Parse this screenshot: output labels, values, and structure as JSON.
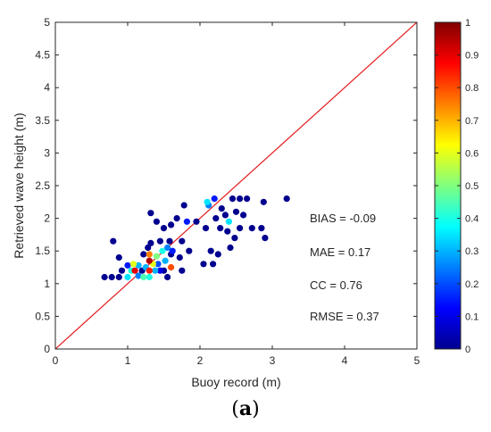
{
  "chart_data": {
    "type": "scatter",
    "xlabel": "Buoy record (m)",
    "ylabel": "Retrieved wave height (m)",
    "xlim": [
      0,
      5
    ],
    "ylim": [
      0,
      5
    ],
    "x_ticks": [
      "0",
      "1",
      "2",
      "3",
      "4",
      "5"
    ],
    "y_ticks": [
      "0",
      "0.5",
      "1",
      "1.5",
      "2",
      "2.5",
      "3",
      "3.5",
      "4",
      "4.5",
      "5"
    ],
    "grid": false,
    "reference_line": {
      "from": [
        0,
        0
      ],
      "to": [
        5,
        5
      ],
      "color": "#e31a1c"
    },
    "stats": [
      "BIAS = -0.09",
      "MAE = 0.17",
      "CC = 0.76",
      "RMSE = 0.37"
    ],
    "colorbar": {
      "range": [
        0,
        1
      ],
      "ticks": [
        "0",
        "0.1",
        "0.2",
        "0.3",
        "0.4",
        "0.5",
        "0.6",
        "0.7",
        "0.8",
        "0.9",
        "1"
      ],
      "colormap": "jet",
      "placement": "right"
    },
    "points": [
      {
        "x": 0.68,
        "y": 1.1,
        "c": 0.0
      },
      {
        "x": 0.78,
        "y": 1.1,
        "c": 0.0
      },
      {
        "x": 0.8,
        "y": 1.65,
        "c": 0.0
      },
      {
        "x": 0.88,
        "y": 1.4,
        "c": 0.0
      },
      {
        "x": 0.88,
        "y": 1.1,
        "c": 0.0
      },
      {
        "x": 0.92,
        "y": 1.2,
        "c": 0.0
      },
      {
        "x": 1.0,
        "y": 1.28,
        "c": 0.15
      },
      {
        "x": 1.0,
        "y": 1.1,
        "c": 0.35
      },
      {
        "x": 1.05,
        "y": 1.2,
        "c": 0.4
      },
      {
        "x": 1.08,
        "y": 1.3,
        "c": 0.6
      },
      {
        "x": 1.1,
        "y": 1.2,
        "c": 0.9
      },
      {
        "x": 1.15,
        "y": 1.28,
        "c": 0.3
      },
      {
        "x": 1.15,
        "y": 1.12,
        "c": 0.25
      },
      {
        "x": 1.2,
        "y": 1.2,
        "c": 0.0
      },
      {
        "x": 1.22,
        "y": 1.45,
        "c": 0.0
      },
      {
        "x": 1.22,
        "y": 1.1,
        "c": 0.45
      },
      {
        "x": 1.25,
        "y": 1.25,
        "c": 0.3
      },
      {
        "x": 1.28,
        "y": 1.55,
        "c": 0.0
      },
      {
        "x": 1.3,
        "y": 1.45,
        "c": 0.75
      },
      {
        "x": 1.3,
        "y": 1.35,
        "c": 0.95
      },
      {
        "x": 1.3,
        "y": 1.2,
        "c": 0.85
      },
      {
        "x": 1.3,
        "y": 1.1,
        "c": 0.4
      },
      {
        "x": 1.32,
        "y": 2.08,
        "c": 0.0
      },
      {
        "x": 1.32,
        "y": 1.62,
        "c": 0.0
      },
      {
        "x": 1.35,
        "y": 1.3,
        "c": 0.6
      },
      {
        "x": 1.38,
        "y": 1.2,
        "c": 0.3
      },
      {
        "x": 1.4,
        "y": 1.95,
        "c": 0.0
      },
      {
        "x": 1.4,
        "y": 1.42,
        "c": 0.5
      },
      {
        "x": 1.42,
        "y": 1.3,
        "c": 0.2
      },
      {
        "x": 1.45,
        "y": 1.2,
        "c": 0.1
      },
      {
        "x": 1.45,
        "y": 1.65,
        "c": 0.0
      },
      {
        "x": 1.48,
        "y": 1.5,
        "c": 0.4
      },
      {
        "x": 1.5,
        "y": 1.85,
        "c": 0.0
      },
      {
        "x": 1.5,
        "y": 1.2,
        "c": 0.0
      },
      {
        "x": 1.52,
        "y": 1.35,
        "c": 0.3
      },
      {
        "x": 1.55,
        "y": 1.55,
        "c": 0.25
      },
      {
        "x": 1.55,
        "y": 1.1,
        "c": 0.0
      },
      {
        "x": 1.58,
        "y": 1.65,
        "c": 0.0
      },
      {
        "x": 1.6,
        "y": 1.45,
        "c": 0.0
      },
      {
        "x": 1.6,
        "y": 1.25,
        "c": 0.8
      },
      {
        "x": 1.6,
        "y": 1.9,
        "c": 0.0
      },
      {
        "x": 1.62,
        "y": 1.5,
        "c": 0.15
      },
      {
        "x": 1.68,
        "y": 2.0,
        "c": 0.0
      },
      {
        "x": 1.72,
        "y": 1.4,
        "c": 0.0
      },
      {
        "x": 1.75,
        "y": 1.2,
        "c": 0.0
      },
      {
        "x": 1.75,
        "y": 1.65,
        "c": 0.0
      },
      {
        "x": 1.78,
        "y": 2.2,
        "c": 0.0
      },
      {
        "x": 1.82,
        "y": 1.95,
        "c": 0.15
      },
      {
        "x": 1.85,
        "y": 1.5,
        "c": 0.0
      },
      {
        "x": 1.95,
        "y": 1.95,
        "c": 0.0
      },
      {
        "x": 2.05,
        "y": 1.3,
        "c": 0.0
      },
      {
        "x": 2.08,
        "y": 1.85,
        "c": 0.0
      },
      {
        "x": 2.1,
        "y": 2.25,
        "c": 0.35
      },
      {
        "x": 2.12,
        "y": 2.2,
        "c": 0.25
      },
      {
        "x": 2.15,
        "y": 1.5,
        "c": 0.0
      },
      {
        "x": 2.18,
        "y": 1.3,
        "c": 0.0
      },
      {
        "x": 2.2,
        "y": 2.3,
        "c": 0.15
      },
      {
        "x": 2.22,
        "y": 2.0,
        "c": 0.0
      },
      {
        "x": 2.25,
        "y": 1.45,
        "c": 0.0
      },
      {
        "x": 2.28,
        "y": 1.85,
        "c": 0.0
      },
      {
        "x": 2.3,
        "y": 2.15,
        "c": 0.0
      },
      {
        "x": 2.35,
        "y": 2.05,
        "c": 0.0
      },
      {
        "x": 2.38,
        "y": 1.8,
        "c": 0.0
      },
      {
        "x": 2.4,
        "y": 1.95,
        "c": 0.35
      },
      {
        "x": 2.42,
        "y": 1.55,
        "c": 0.0
      },
      {
        "x": 2.45,
        "y": 2.3,
        "c": 0.0
      },
      {
        "x": 2.48,
        "y": 1.7,
        "c": 0.0
      },
      {
        "x": 2.5,
        "y": 2.1,
        "c": 0.0
      },
      {
        "x": 2.55,
        "y": 2.3,
        "c": 0.0
      },
      {
        "x": 2.55,
        "y": 1.85,
        "c": 0.0
      },
      {
        "x": 2.6,
        "y": 2.05,
        "c": 0.0
      },
      {
        "x": 2.65,
        "y": 2.3,
        "c": 0.0
      },
      {
        "x": 2.72,
        "y": 1.85,
        "c": 0.0
      },
      {
        "x": 2.85,
        "y": 1.85,
        "c": 0.0
      },
      {
        "x": 2.88,
        "y": 2.25,
        "c": 0.0
      },
      {
        "x": 2.9,
        "y": 1.7,
        "c": 0.0
      },
      {
        "x": 3.2,
        "y": 2.3,
        "c": 0.0
      }
    ]
  },
  "caption": {
    "label": "a"
  }
}
